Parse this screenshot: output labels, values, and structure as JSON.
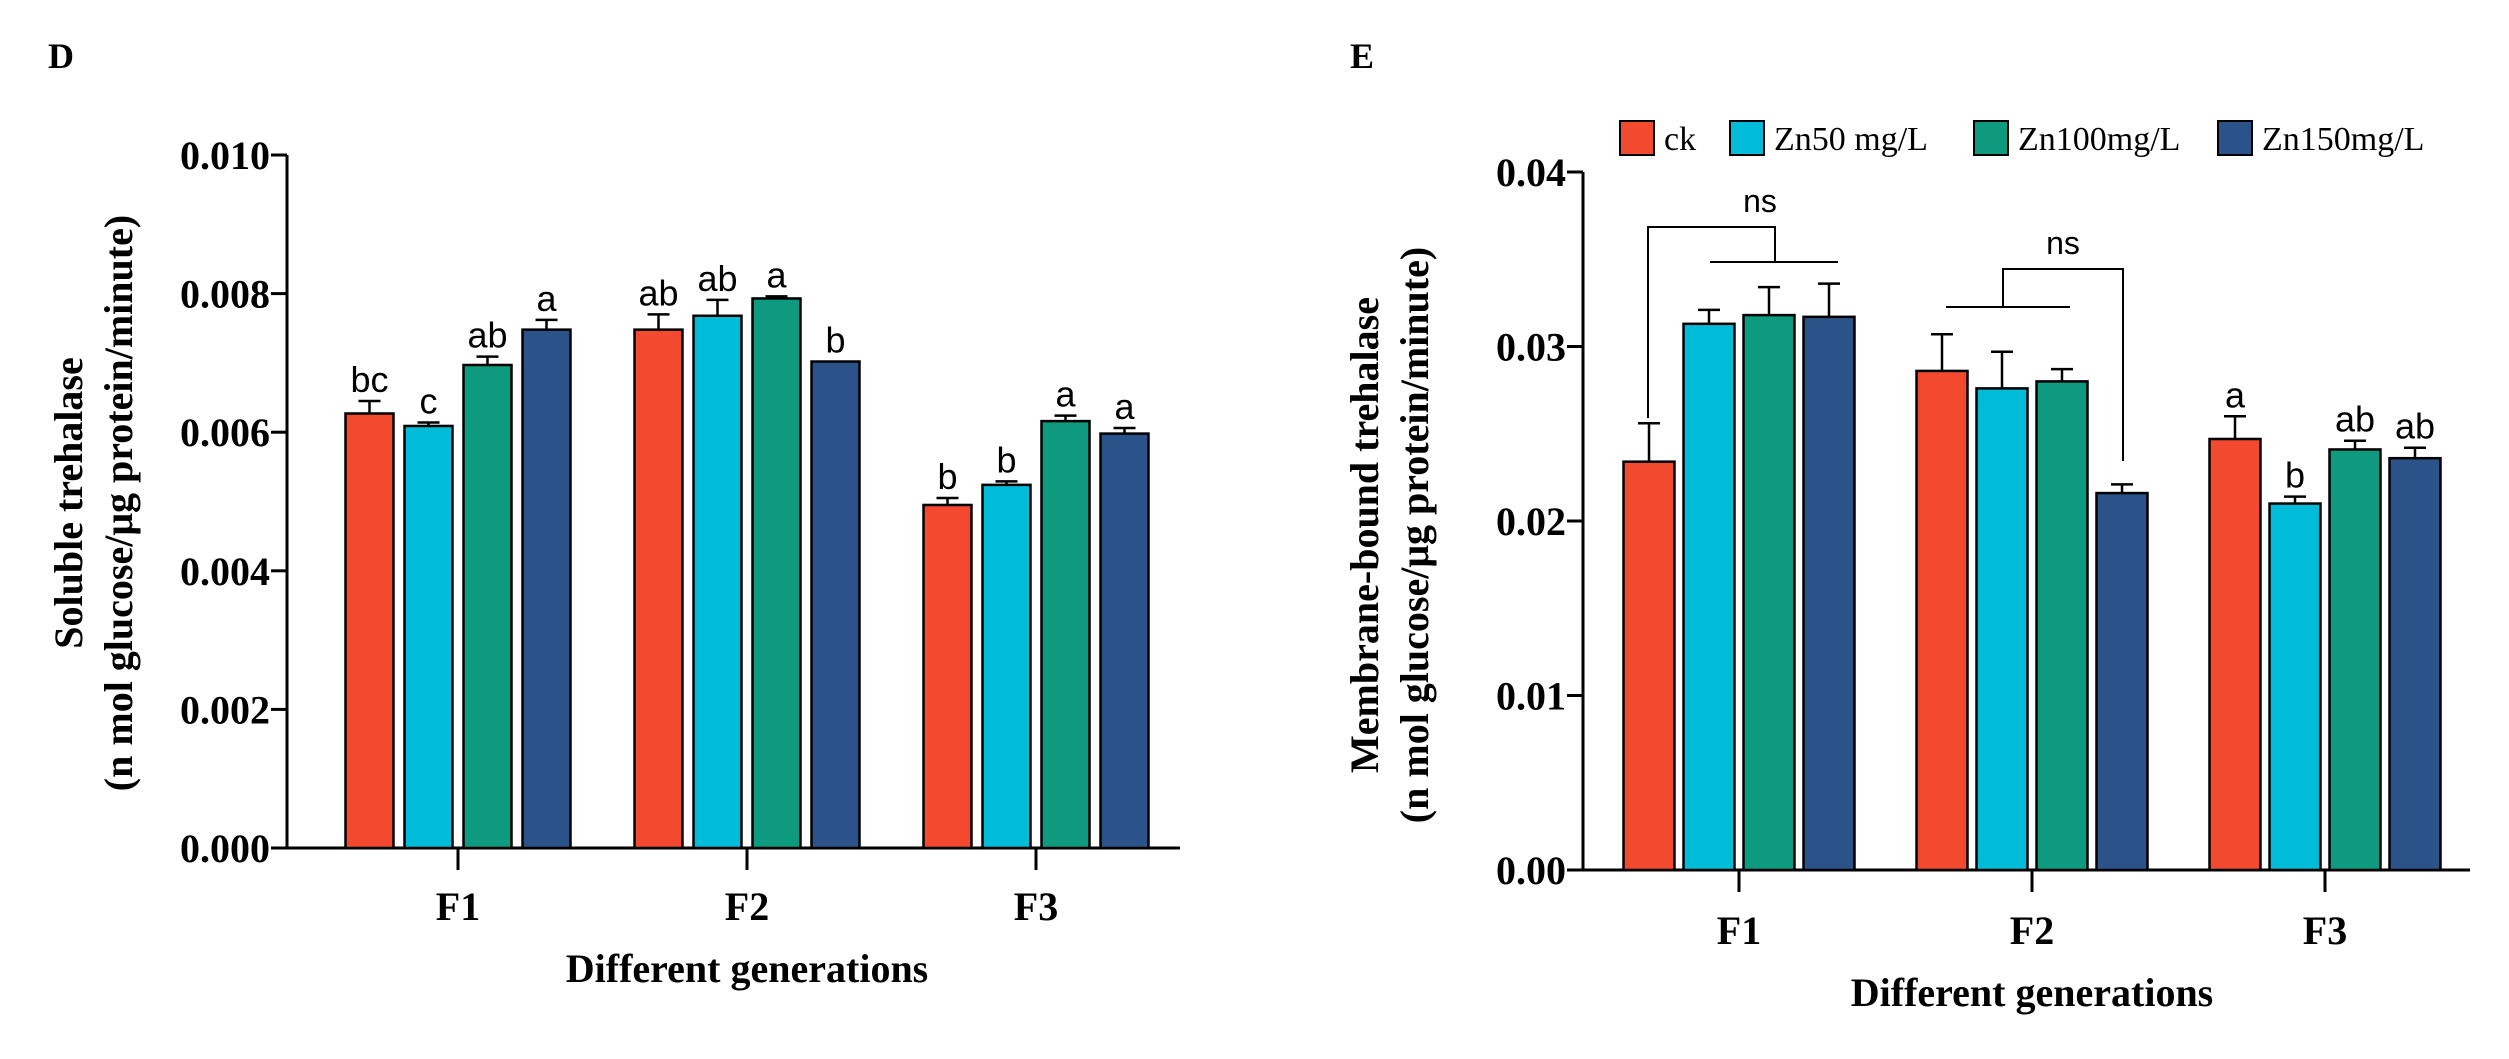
{
  "series_colors": {
    "ck": "#F2492F",
    "Zn50 mg/L": "#00BCD8",
    "Zn100mg/L": "#0D9A7E",
    "Zn150mg/L": "#2B5289"
  },
  "legend": [
    "ck",
    "Zn50 mg/L",
    "Zn100mg/L",
    "Zn150mg/L"
  ],
  "chart_data": [
    {
      "panel": "D",
      "type": "bar",
      "title": "",
      "xlabel": "Different generations",
      "ylabel_line1": "Soluble trehalase",
      "ylabel_line2": "(n mol glucose/μg protein/minute)",
      "ylim": [
        0,
        0.01
      ],
      "yticks": [
        "0.000",
        "0.002",
        "0.004",
        "0.006",
        "0.008",
        "0.010"
      ],
      "categories": [
        "F1",
        "F2",
        "F3"
      ],
      "series": [
        {
          "name": "ck",
          "values": [
            0.00627,
            0.00748,
            0.00495
          ],
          "errors": [
            0.00018,
            0.00022,
            0.0001
          ],
          "letters": [
            "bc",
            "ab",
            "b"
          ]
        },
        {
          "name": "Zn50 mg/L",
          "values": [
            0.00609,
            0.00768,
            0.00524
          ],
          "errors": [
            5e-05,
            0.00023,
            5e-05
          ],
          "letters": [
            "c",
            "ab",
            "b"
          ]
        },
        {
          "name": "Zn100mg/L",
          "values": [
            0.00697,
            0.00793,
            0.00616
          ],
          "errors": [
            0.00012,
            3e-05,
            8e-05
          ],
          "letters": [
            "ab",
            "a",
            "a"
          ]
        },
        {
          "name": "Zn150mg/L",
          "values": [
            0.00748,
            0.00702,
            0.00598
          ],
          "errors": [
            0.00014,
            0.0,
            8e-05
          ],
          "letters": [
            "a",
            "b",
            "a"
          ]
        }
      ],
      "annotations": []
    },
    {
      "panel": "E",
      "type": "bar",
      "title": "",
      "xlabel": "Different generations",
      "ylabel_line1": "Membrane-bound trehalase",
      "ylabel_line2": "(n mol glucose/μg protein/minute)",
      "ylim": [
        0,
        0.04
      ],
      "yticks": [
        "0.00",
        "0.01",
        "0.02",
        "0.03",
        "0.04"
      ],
      "categories": [
        "F1",
        "F2",
        "F3"
      ],
      "series": [
        {
          "name": "ck",
          "values": [
            0.0234,
            0.0286,
            0.0247
          ],
          "errors": [
            0.0022,
            0.0021,
            0.0013
          ],
          "letters": [
            "",
            "",
            "a"
          ]
        },
        {
          "name": "Zn50 mg/L",
          "values": [
            0.0313,
            0.0276,
            0.021
          ],
          "errors": [
            0.0008,
            0.0021,
            0.0004
          ],
          "letters": [
            "",
            "",
            "b"
          ]
        },
        {
          "name": "Zn100mg/L",
          "values": [
            0.0318,
            0.028,
            0.0241
          ],
          "errors": [
            0.0016,
            0.0007,
            0.0005
          ],
          "letters": [
            "",
            "",
            "ab"
          ]
        },
        {
          "name": "Zn150mg/L",
          "values": [
            0.0317,
            0.0216,
            0.0236
          ],
          "errors": [
            0.0019,
            0.0005,
            0.0006
          ],
          "letters": [
            "",
            "",
            "ab"
          ]
        }
      ],
      "annotations": [
        "ns",
        "ns"
      ]
    }
  ]
}
